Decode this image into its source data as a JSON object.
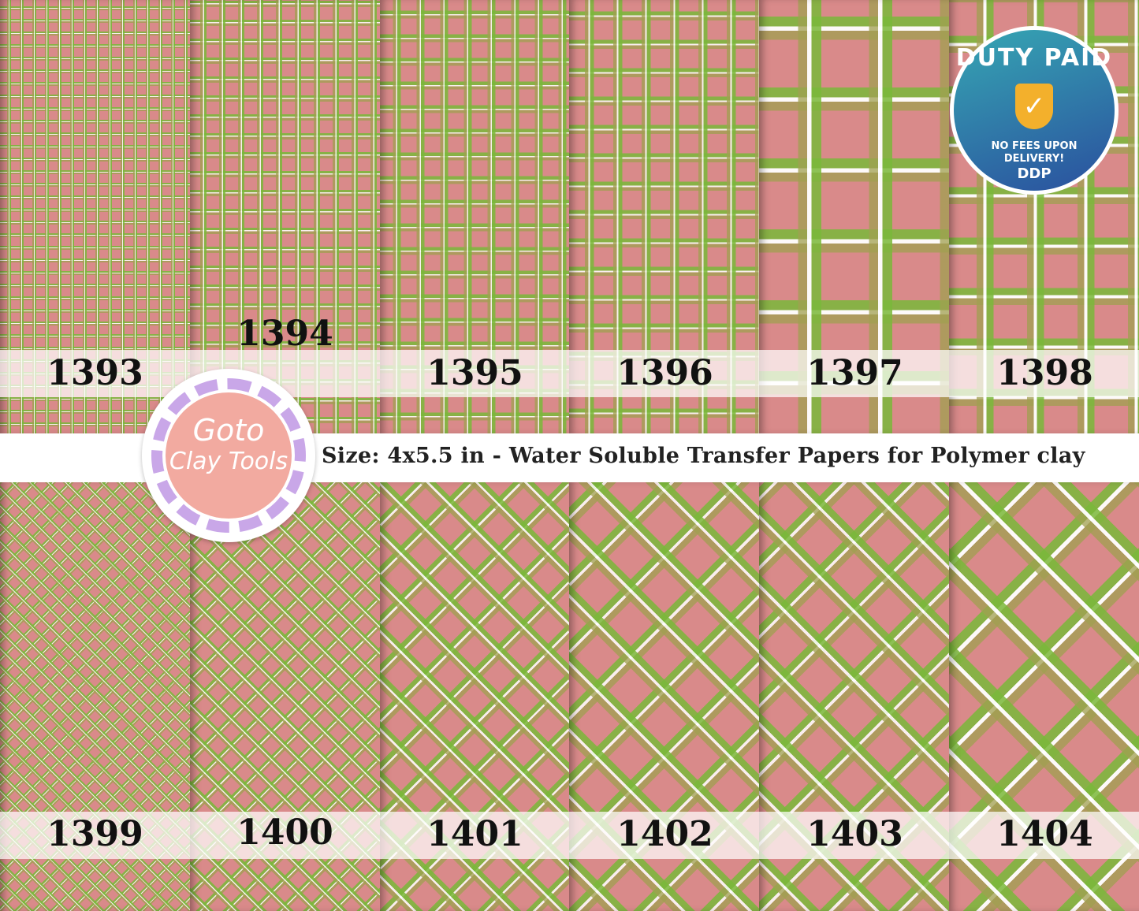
{
  "top_labels": [
    "1393",
    "1394",
    "1395",
    "1396",
    "1397",
    "1398"
  ],
  "bottom_labels": [
    "1399",
    "1400",
    "1401",
    "1402",
    "1403",
    "1404"
  ],
  "banner": "Size: 4x5.5 in - Water Soluble Transfer Papers for Polymer clay",
  "logo": {
    "line1": "Goto",
    "line2": "Clay Tools"
  },
  "badge": {
    "title": "DUTY PAID",
    "line1": "NO FEES UPON",
    "line2": "DELIVERY!",
    "code": "DDP",
    "icon": "shield-check-icon"
  },
  "colors": {
    "pink": "#d98a8a",
    "green": "#7ab83a",
    "olive": "#a0a050",
    "badge": "#2a6fa8",
    "logo": "#f2aaa0"
  }
}
